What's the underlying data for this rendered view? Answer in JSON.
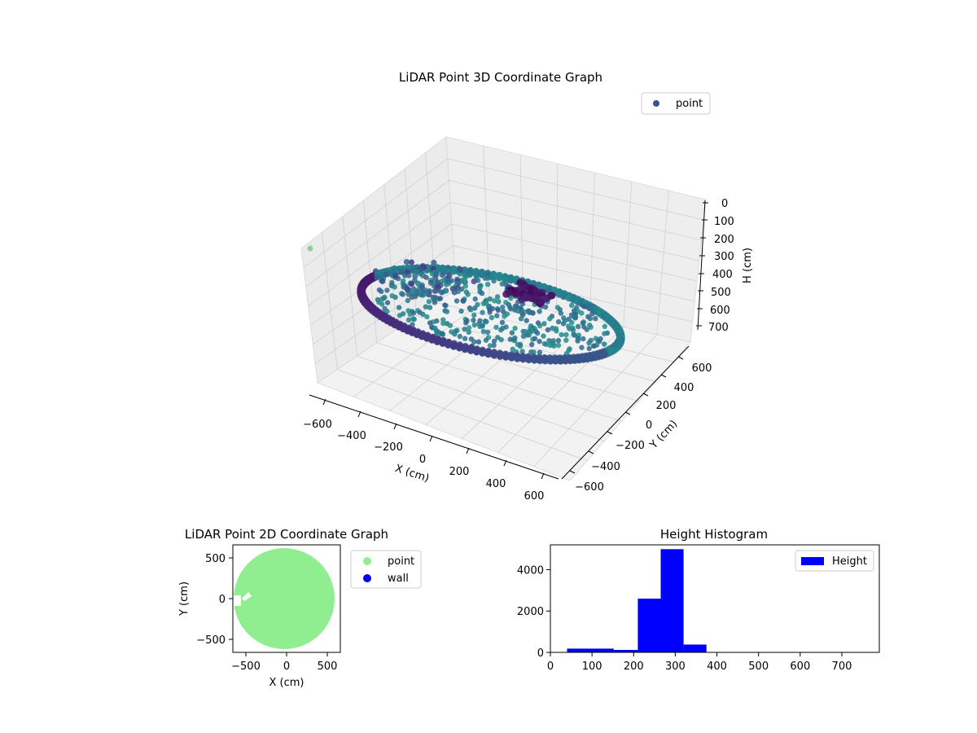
{
  "chart_data": [
    {
      "type": "scatter3d",
      "title": "LiDAR Point 3D Coordinate Graph",
      "xlabel": "X (cm)",
      "ylabel": "Y (cm)",
      "zlabel": "H (cm)",
      "xlim": [
        -650,
        650
      ],
      "ylim": [
        -650,
        650
      ],
      "zlim": [
        0,
        750
      ],
      "z_inverted": true,
      "xticks": [
        "−600",
        "−400",
        "−200",
        "0",
        "200",
        "400",
        "600"
      ],
      "yticks": [
        "−600",
        "−400",
        "−200",
        "0",
        "200",
        "400",
        "600"
      ],
      "zticks": [
        "0",
        "100",
        "200",
        "300",
        "400",
        "500",
        "600",
        "700"
      ],
      "grid": true,
      "colormap": "viridis",
      "legend": {
        "position": "upper-right",
        "entries": [
          "point"
        ]
      },
      "series": [
        {
          "name": "point",
          "marker_color": "#3b528b",
          "description_values": {
            "ring_radius_cm": 600,
            "ring_height_cm": [
              260,
              310
            ],
            "floor_height_cm": [
              200,
              320
            ],
            "upper_cluster_height_cm": [
              60,
              150
            ],
            "outlier": {
              "x": -650,
              "y": 650,
              "h": 240
            }
          }
        }
      ]
    },
    {
      "type": "scatter",
      "title": "LiDAR Point 2D Coordinate Graph",
      "xlabel": "X (cm)",
      "ylabel": "Y (cm)",
      "xlim": [
        -660,
        660
      ],
      "ylim": [
        -660,
        660
      ],
      "xticks": [
        "−500",
        "0",
        "500"
      ],
      "yticks": [
        "−500",
        "0",
        "500"
      ],
      "legend": {
        "position": "outside-right",
        "entries": [
          "point",
          "wall"
        ]
      },
      "series": [
        {
          "name": "point",
          "color": "#90ee90",
          "region": {
            "center": [
              -30,
              0
            ],
            "radius": 620
          }
        },
        {
          "name": "wall",
          "color": "#0000ff",
          "points": []
        }
      ]
    },
    {
      "type": "bar",
      "title": "Height Histogram",
      "xlabel": "",
      "ylabel": "",
      "xlim": [
        0,
        790
      ],
      "ylim": [
        0,
        5200
      ],
      "xticks": [
        "0",
        "100",
        "200",
        "300",
        "400",
        "500",
        "600",
        "700"
      ],
      "yticks": [
        "0",
        "2000",
        "4000"
      ],
      "legend": {
        "position": "upper-right",
        "entries": [
          "Height"
        ]
      },
      "color": "#0000ff",
      "bins": [
        {
          "x0": 40,
          "x1": 152,
          "count": 180
        },
        {
          "x0": 152,
          "x1": 210,
          "count": 120
        },
        {
          "x0": 210,
          "x1": 265,
          "count": 2600
        },
        {
          "x0": 265,
          "x1": 320,
          "count": 4990
        },
        {
          "x0": 320,
          "x1": 375,
          "count": 380
        }
      ],
      "series": [
        {
          "name": "Height"
        }
      ]
    }
  ]
}
